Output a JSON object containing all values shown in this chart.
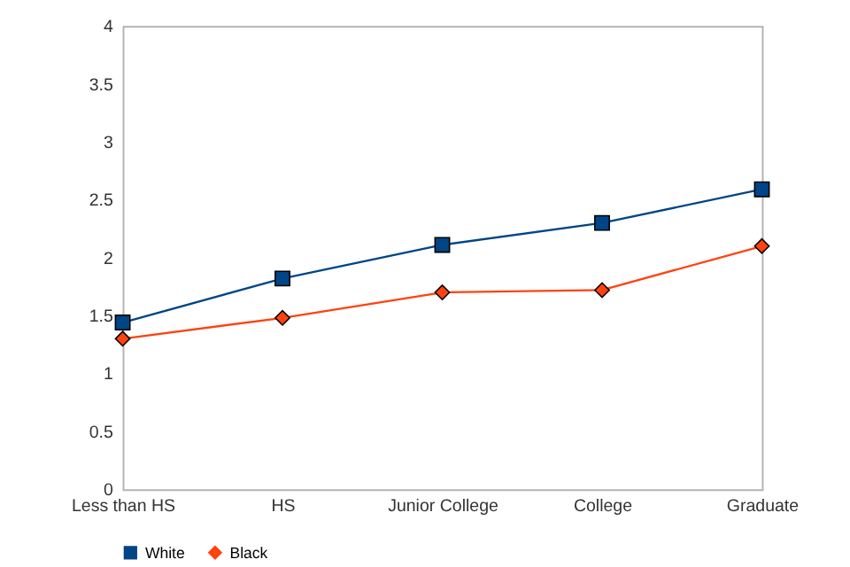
{
  "chart_data": {
    "type": "line",
    "categories": [
      "Less than HS",
      "HS",
      "Junior College",
      "College",
      "Graduate"
    ],
    "series": [
      {
        "name": "White",
        "color": "#004586",
        "marker": "square",
        "values": [
          1.44,
          1.82,
          2.11,
          2.3,
          2.59
        ]
      },
      {
        "name": "Black",
        "color": "#ff420e",
        "marker": "diamond",
        "values": [
          1.3,
          1.48,
          1.7,
          1.72,
          2.1
        ]
      }
    ],
    "ylim": [
      0,
      4
    ],
    "yticks": [
      0,
      0.5,
      1,
      1.5,
      2,
      2.5,
      3,
      3.5,
      4
    ],
    "grid": false,
    "legend": "bottom"
  }
}
